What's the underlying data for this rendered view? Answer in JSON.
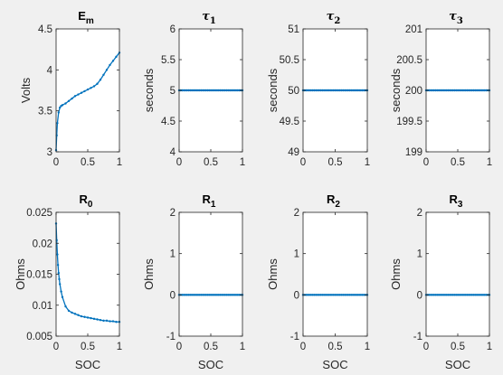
{
  "figure_background": "#f0f0f0",
  "axes_color": "#262626",
  "series_color": "#0072bd",
  "chart_data": [
    {
      "type": "line",
      "title": {
        "main": "E",
        "sub": "m",
        "greek": false
      },
      "xlabel": "",
      "ylabel": "Volts",
      "xlim": [
        0,
        1
      ],
      "ylim": [
        3,
        4.5
      ],
      "xticks": [
        0,
        0.5,
        1
      ],
      "xtick_labels": [
        "0",
        "0.5",
        "1"
      ],
      "yticks": [
        3,
        3.5,
        4,
        4.5
      ],
      "ytick_labels": [
        "3",
        "3.5",
        "4",
        "4.5"
      ],
      "series": [
        {
          "x": [
            0.0,
            0.01,
            0.02,
            0.04,
            0.06,
            0.08,
            0.1,
            0.15,
            0.2,
            0.25,
            0.3,
            0.35,
            0.4,
            0.45,
            0.5,
            0.55,
            0.6,
            0.65,
            0.7,
            0.75,
            0.8,
            0.85,
            0.9,
            0.95,
            1.0
          ],
          "y": [
            3.02,
            3.2,
            3.35,
            3.48,
            3.54,
            3.56,
            3.57,
            3.59,
            3.62,
            3.65,
            3.68,
            3.7,
            3.72,
            3.74,
            3.76,
            3.78,
            3.8,
            3.83,
            3.88,
            3.94,
            4.0,
            4.06,
            4.11,
            4.16,
            4.21
          ]
        }
      ]
    },
    {
      "type": "line",
      "title": {
        "main": "τ",
        "sub": "1",
        "greek": true
      },
      "xlabel": "",
      "ylabel": "seconds",
      "xlim": [
        0,
        1
      ],
      "ylim": [
        4,
        6
      ],
      "xticks": [
        0,
        0.5,
        1
      ],
      "xtick_labels": [
        "0",
        "0.5",
        "1"
      ],
      "yticks": [
        4,
        4.5,
        5,
        5.5,
        6
      ],
      "ytick_labels": [
        "4",
        "4.5",
        "5",
        "5.5",
        "6"
      ],
      "series": [
        {
          "x": [
            0,
            1
          ],
          "y": [
            5,
            5
          ]
        }
      ]
    },
    {
      "type": "line",
      "title": {
        "main": "τ",
        "sub": "2",
        "greek": true
      },
      "xlabel": "",
      "ylabel": "seconds",
      "xlim": [
        0,
        1
      ],
      "ylim": [
        49,
        51
      ],
      "xticks": [
        0,
        0.5,
        1
      ],
      "xtick_labels": [
        "0",
        "0.5",
        "1"
      ],
      "yticks": [
        49,
        49.5,
        50,
        50.5,
        51
      ],
      "ytick_labels": [
        "49",
        "49.5",
        "50",
        "50.5",
        "51"
      ],
      "series": [
        {
          "x": [
            0,
            1
          ],
          "y": [
            50,
            50
          ]
        }
      ]
    },
    {
      "type": "line",
      "title": {
        "main": "τ",
        "sub": "3",
        "greek": true
      },
      "xlabel": "",
      "ylabel": "seconds",
      "xlim": [
        0,
        1
      ],
      "ylim": [
        199,
        201
      ],
      "xticks": [
        0,
        0.5,
        1
      ],
      "xtick_labels": [
        "0",
        "0.5",
        "1"
      ],
      "yticks": [
        199,
        199.5,
        200,
        200.5,
        201
      ],
      "ytick_labels": [
        "199",
        "199.5",
        "200",
        "200.5",
        "201"
      ],
      "series": [
        {
          "x": [
            0,
            1
          ],
          "y": [
            200,
            200
          ]
        }
      ]
    },
    {
      "type": "line",
      "title": {
        "main": "R",
        "sub": "0",
        "greek": false
      },
      "xlabel": "SOC",
      "ylabel": "Ohms",
      "xlim": [
        0,
        1
      ],
      "ylim": [
        0.005,
        0.025
      ],
      "xticks": [
        0,
        0.5,
        1
      ],
      "xtick_labels": [
        "0",
        "0.5",
        "1"
      ],
      "yticks": [
        0.005,
        0.01,
        0.015,
        0.02,
        0.025
      ],
      "ytick_labels": [
        "0.005",
        "0.01",
        "0.015",
        "0.02",
        "0.025"
      ],
      "series": [
        {
          "x": [
            0.0,
            0.01,
            0.02,
            0.03,
            0.04,
            0.05,
            0.06,
            0.08,
            0.1,
            0.15,
            0.2,
            0.25,
            0.3,
            0.35,
            0.4,
            0.45,
            0.5,
            0.55,
            0.6,
            0.65,
            0.7,
            0.75,
            0.8,
            0.85,
            0.9,
            0.95,
            1.0
          ],
          "y": [
            0.0232,
            0.0205,
            0.0182,
            0.0165,
            0.0152,
            0.0142,
            0.0134,
            0.0122,
            0.0113,
            0.0098,
            0.0091,
            0.0088,
            0.0086,
            0.0084,
            0.0082,
            0.0081,
            0.008,
            0.0079,
            0.0078,
            0.0077,
            0.0076,
            0.0075,
            0.0075,
            0.0074,
            0.0074,
            0.0073,
            0.0073
          ]
        }
      ]
    },
    {
      "type": "line",
      "title": {
        "main": "R",
        "sub": "1",
        "greek": false
      },
      "xlabel": "SOC",
      "ylabel": "Ohms",
      "xlim": [
        0,
        1
      ],
      "ylim": [
        -1,
        2
      ],
      "xticks": [
        0,
        0.5,
        1
      ],
      "xtick_labels": [
        "0",
        "0.5",
        "1"
      ],
      "yticks": [
        -1,
        0,
        1,
        2
      ],
      "ytick_labels": [
        "-1",
        "0",
        "1",
        "2"
      ],
      "series": [
        {
          "x": [
            0,
            1
          ],
          "y": [
            0,
            0
          ]
        }
      ]
    },
    {
      "type": "line",
      "title": {
        "main": "R",
        "sub": "2",
        "greek": false
      },
      "xlabel": "SOC",
      "ylabel": "Ohms",
      "xlim": [
        0,
        1
      ],
      "ylim": [
        -1,
        2
      ],
      "xticks": [
        0,
        0.5,
        1
      ],
      "xtick_labels": [
        "0",
        "0.5",
        "1"
      ],
      "yticks": [
        -1,
        0,
        1,
        2
      ],
      "ytick_labels": [
        "-1",
        "0",
        "1",
        "2"
      ],
      "series": [
        {
          "x": [
            0,
            1
          ],
          "y": [
            0,
            0
          ]
        }
      ]
    },
    {
      "type": "line",
      "title": {
        "main": "R",
        "sub": "3",
        "greek": false
      },
      "xlabel": "SOC",
      "ylabel": "Ohms",
      "xlim": [
        0,
        1
      ],
      "ylim": [
        -1,
        2
      ],
      "xticks": [
        0,
        0.5,
        1
      ],
      "xtick_labels": [
        "0",
        "0.5",
        "1"
      ],
      "yticks": [
        -1,
        0,
        1,
        2
      ],
      "ytick_labels": [
        "-1",
        "0",
        "1",
        "2"
      ],
      "series": [
        {
          "x": [
            0,
            1
          ],
          "y": [
            0,
            0
          ]
        }
      ]
    }
  ]
}
